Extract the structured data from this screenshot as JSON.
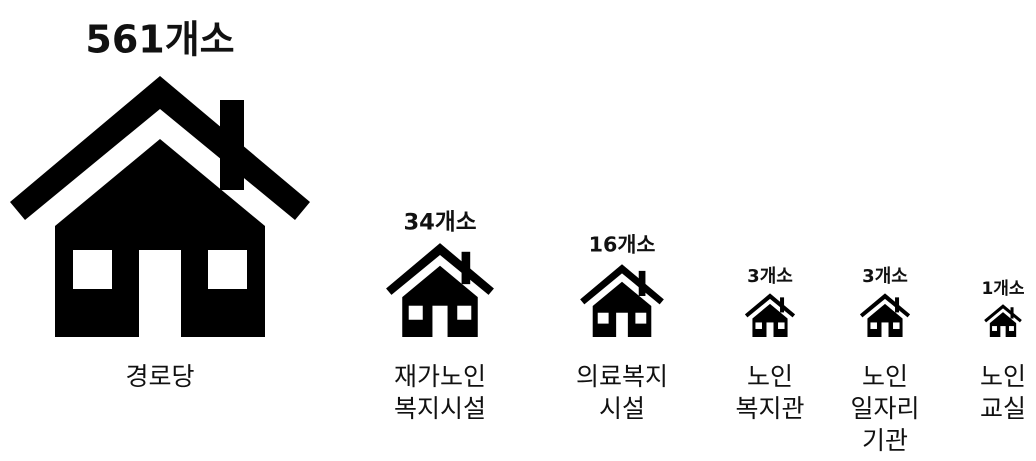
{
  "chart_data": {
    "type": "pictograph",
    "categories": [
      [
        "경로당"
      ],
      [
        "재가노인",
        "복지시설"
      ],
      [
        "의료복지",
        "시설"
      ],
      [
        "노인",
        "복지관"
      ],
      [
        "노인",
        "일자리",
        "기관"
      ],
      [
        "노인",
        "교실"
      ]
    ],
    "values": [
      561,
      34,
      16,
      3,
      3,
      1
    ],
    "value_labels": [
      "561개소",
      "34개소",
      "16개소",
      "3개소",
      "3개소",
      "1개소"
    ],
    "color": "#000000"
  }
}
